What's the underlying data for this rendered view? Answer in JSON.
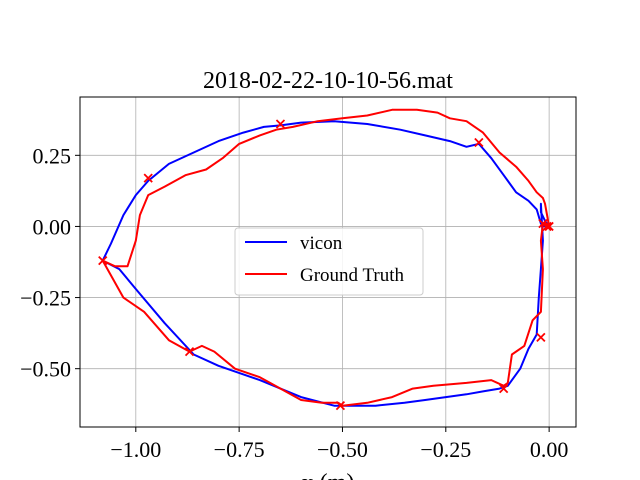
{
  "chart_data": {
    "type": "line",
    "title": "2018-02-22-10-10-56.mat",
    "xlabel": "x (m)",
    "ylabel": "",
    "xlim": [
      -1.135,
      0.065
    ],
    "ylim": [
      -0.705,
      0.455
    ],
    "xticks": [
      -1.0,
      -0.75,
      -0.5,
      -0.25,
      0.0
    ],
    "xtick_labels": [
      "−1.00",
      "−0.75",
      "−0.50",
      "−0.25",
      "0.00"
    ],
    "yticks": [
      0.25,
      0.0,
      -0.25,
      -0.5
    ],
    "ytick_labels": [
      "0.25",
      "0.00",
      "−0.25",
      "−0.50"
    ],
    "grid": true,
    "legend_position": "center",
    "series": [
      {
        "name": "vicon",
        "color": "#0000ff",
        "x": [
          0.0,
          -0.01,
          -0.02,
          -0.02,
          -0.015,
          -0.02,
          -0.025,
          -0.03,
          -0.05,
          -0.07,
          -0.1,
          -0.12,
          -0.16,
          -0.2,
          -0.25,
          -0.3,
          -0.35,
          -0.42,
          -0.48,
          -0.52,
          -0.6,
          -0.7,
          -0.8,
          -0.86,
          -0.93,
          -1.0,
          -1.04,
          -1.08,
          -1.06,
          -1.03,
          -1.0,
          -0.97,
          -0.92,
          -0.86,
          -0.8,
          -0.74,
          -0.69,
          -0.65,
          -0.6,
          -0.52,
          -0.44,
          -0.36,
          -0.3,
          -0.24,
          -0.2,
          -0.17,
          -0.14,
          -0.11,
          -0.08,
          -0.05,
          -0.03,
          -0.02,
          -0.015,
          0.0
        ],
        "y": [
          0.0,
          0.02,
          0.05,
          0.08,
          -0.05,
          -0.15,
          -0.25,
          -0.38,
          -0.43,
          -0.5,
          -0.56,
          -0.57,
          -0.58,
          -0.59,
          -0.6,
          -0.61,
          -0.62,
          -0.63,
          -0.63,
          -0.63,
          -0.6,
          -0.54,
          -0.49,
          -0.45,
          -0.34,
          -0.22,
          -0.15,
          -0.12,
          -0.06,
          0.04,
          0.11,
          0.16,
          0.22,
          0.26,
          0.3,
          0.33,
          0.35,
          0.355,
          0.365,
          0.37,
          0.36,
          0.34,
          0.32,
          0.3,
          0.28,
          0.29,
          0.24,
          0.18,
          0.12,
          0.09,
          0.06,
          0.01,
          0.0,
          0.0
        ]
      },
      {
        "name": "Ground Truth",
        "color": "#ff0000",
        "x": [
          0.0,
          -0.005,
          -0.015,
          -0.02,
          -0.015,
          -0.02,
          -0.04,
          -0.06,
          -0.09,
          -0.1,
          -0.11,
          -0.14,
          -0.2,
          -0.28,
          -0.33,
          -0.38,
          -0.44,
          -0.5,
          -0.51,
          -0.55,
          -0.6,
          -0.65,
          -0.7,
          -0.76,
          -0.81,
          -0.84,
          -0.87,
          -0.92,
          -0.98,
          -1.03,
          -1.08,
          -1.05,
          -1.02,
          -1.0,
          -0.99,
          -0.97,
          -0.93,
          -0.88,
          -0.83,
          -0.79,
          -0.75,
          -0.7,
          -0.66,
          -0.62,
          -0.56,
          -0.5,
          -0.44,
          -0.38,
          -0.32,
          -0.27,
          -0.24,
          -0.2,
          -0.16,
          -0.12,
          -0.08,
          -0.05,
          -0.03,
          -0.015,
          -0.01,
          0.0
        ],
        "y": [
          0.0,
          0.0,
          0.01,
          -0.05,
          -0.15,
          -0.3,
          -0.33,
          -0.42,
          -0.45,
          -0.55,
          -0.56,
          -0.54,
          -0.55,
          -0.56,
          -0.57,
          -0.6,
          -0.62,
          -0.63,
          -0.62,
          -0.62,
          -0.61,
          -0.57,
          -0.53,
          -0.5,
          -0.44,
          -0.42,
          -0.44,
          -0.4,
          -0.3,
          -0.25,
          -0.12,
          -0.14,
          -0.14,
          -0.05,
          0.04,
          0.11,
          0.14,
          0.18,
          0.2,
          0.24,
          0.29,
          0.32,
          0.34,
          0.35,
          0.37,
          0.38,
          0.39,
          0.41,
          0.41,
          0.4,
          0.38,
          0.37,
          0.33,
          0.26,
          0.21,
          0.16,
          0.12,
          0.1,
          0.08,
          0.0
        ]
      }
    ],
    "markers": {
      "color": "#ff0000",
      "symbol": "x",
      "points": [
        {
          "x": 0.0,
          "y": 0.0
        },
        {
          "x": -0.005,
          "y": 0.0
        },
        {
          "x": -0.015,
          "y": 0.01
        },
        {
          "x": -0.02,
          "y": -0.39
        },
        {
          "x": -0.11,
          "y": -0.57
        },
        {
          "x": -0.505,
          "y": -0.63
        },
        {
          "x": -0.87,
          "y": -0.44
        },
        {
          "x": -1.08,
          "y": -0.12
        },
        {
          "x": -0.97,
          "y": 0.17
        },
        {
          "x": -0.65,
          "y": 0.36
        },
        {
          "x": -0.17,
          "y": 0.295
        }
      ]
    }
  }
}
